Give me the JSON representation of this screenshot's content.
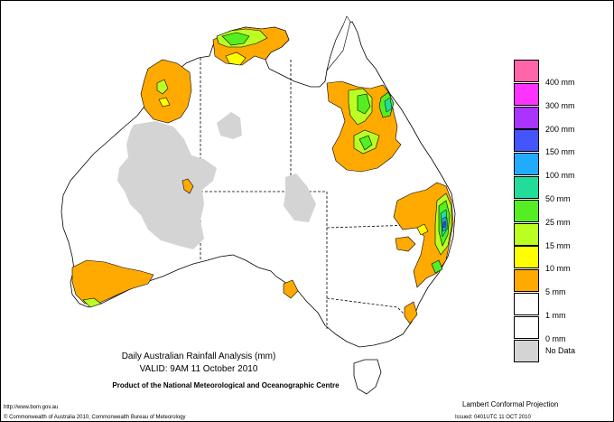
{
  "map": {
    "title": "Daily Australian Rainfall Analysis (mm)",
    "valid": "VALID: 9AM 11 October 2010",
    "product": "Product of the National Meteorological and Oceanographic Centre",
    "projection": "Lambert Conformal Projection",
    "url": "http://www.bom.gov.au",
    "copyright": "© Commonwealth of Australia 2010, Commonwealth Bureau of Meteorology",
    "issued": "Issued: 0401UTC 11 OCT 2010"
  },
  "legend": {
    "items": [
      {
        "label": "400 mm",
        "color": "#ff66aa"
      },
      {
        "label": "300 mm",
        "color": "#ff33ff"
      },
      {
        "label": "200 mm",
        "color": "#aa33ff"
      },
      {
        "label": "150 mm",
        "color": "#4455ff"
      },
      {
        "label": "100 mm",
        "color": "#22aaff"
      },
      {
        "label": "50 mm",
        "color": "#22dd99"
      },
      {
        "label": "25 mm",
        "color": "#55ee22"
      },
      {
        "label": "15 mm",
        "color": "#bbff22"
      },
      {
        "label": "10 mm",
        "color": "#ffff00"
      },
      {
        "label": "5 mm",
        "color": "#ffaa00"
      },
      {
        "label": "1 mm",
        "color": "#ffffff"
      },
      {
        "label": "0 mm",
        "color": "#ffffff"
      },
      {
        "label": "No Data",
        "color": "#d4d4d4"
      }
    ]
  }
}
